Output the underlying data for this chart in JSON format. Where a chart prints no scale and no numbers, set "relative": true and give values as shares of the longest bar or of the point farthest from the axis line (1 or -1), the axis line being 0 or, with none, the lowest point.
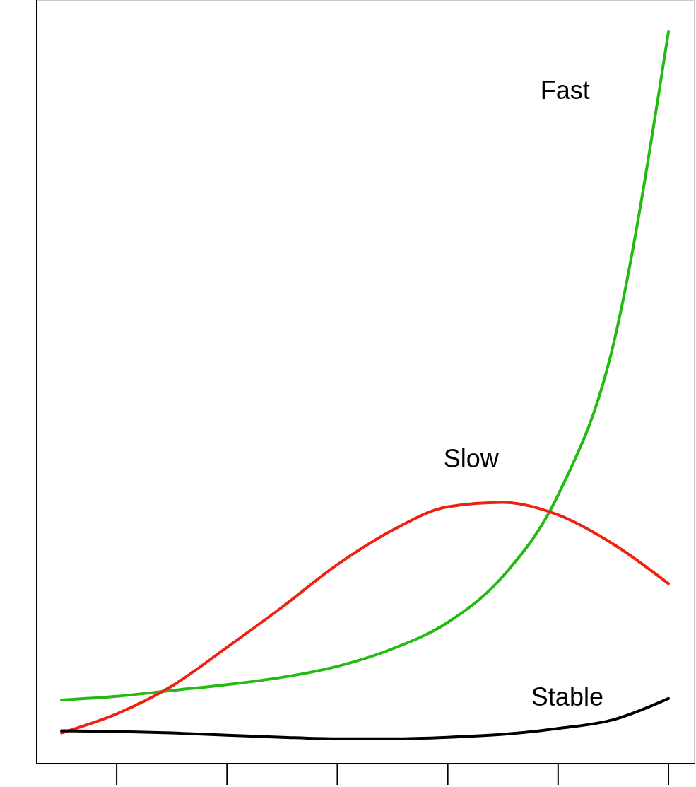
{
  "chart_data": {
    "type": "line",
    "relative": true,
    "categories": [
      null,
      null,
      null,
      null,
      null,
      null,
      null,
      null,
      null,
      null,
      null,
      null
    ],
    "series": [
      {
        "name": "Fast",
        "color": "#22bb11",
        "values": [
          0.087,
          0.092,
          0.1,
          0.108,
          0.118,
          0.133,
          0.157,
          0.193,
          0.256,
          0.367,
          0.572,
          1
        ]
      },
      {
        "name": "Slow",
        "color": "#ee2211",
        "values": [
          0.042,
          0.068,
          0.106,
          0.159,
          0.214,
          0.272,
          0.319,
          0.351,
          0.357,
          0.34,
          0.3,
          0.246
        ]
      },
      {
        "name": "Stable",
        "color": "#000000",
        "values": [
          0.045,
          0.044,
          0.042,
          0.039,
          0.036,
          0.034,
          0.034,
          0.036,
          0.04,
          0.048,
          0.06,
          0.089
        ]
      }
    ]
  }
}
